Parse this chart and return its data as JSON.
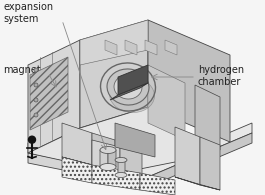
{
  "bg": "#f5f5f5",
  "lc": "#444444",
  "lc2": "#666666",
  "lc3": "#888888",
  "white": "#ffffff",
  "fl": "#eeeeee",
  "fm": "#dddddd",
  "fd": "#cccccc",
  "fdd": "#bbbbbb",
  "fddd": "#aaaaaa",
  "fh": "#c8c8c8",
  "label_fs": 7.0,
  "label_color": "#222222",
  "arrow_color": "#888888",
  "labels": {
    "expansion_system": "expansion\nsystem",
    "magnet": "magnet",
    "hydrogen_chamber": "hydrogen\nchamber"
  }
}
